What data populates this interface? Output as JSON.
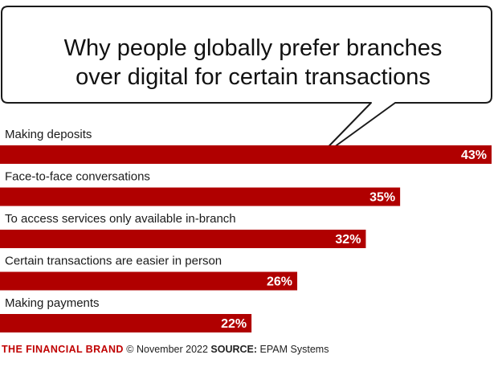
{
  "title_lines": [
    "Why people globally prefer branches",
    "over digital for certain transactions"
  ],
  "colors": {
    "bar": "#b00000",
    "label_text": "#1a1a1a",
    "value_text": "#ffffff",
    "brand": "#c00000"
  },
  "chart_data": {
    "type": "bar",
    "orientation": "horizontal",
    "title": "Why people globally prefer branches over digital for certain transactions",
    "categories": [
      "Making deposits",
      "Face-to-face conversations",
      "To access services only available in-branch",
      "Certain transactions are easier in person",
      "Making payments"
    ],
    "values": [
      43,
      35,
      32,
      26,
      22
    ],
    "value_labels": [
      "43%",
      "35%",
      "32%",
      "26%",
      "22%"
    ],
    "xlim": [
      0,
      43
    ],
    "grid": false,
    "legend": "none"
  },
  "footer": {
    "brand": "THE FINANCIAL BRAND",
    "date_text": "© November 2022",
    "source_label": "SOURCE:",
    "source_text": "EPAM Systems"
  }
}
